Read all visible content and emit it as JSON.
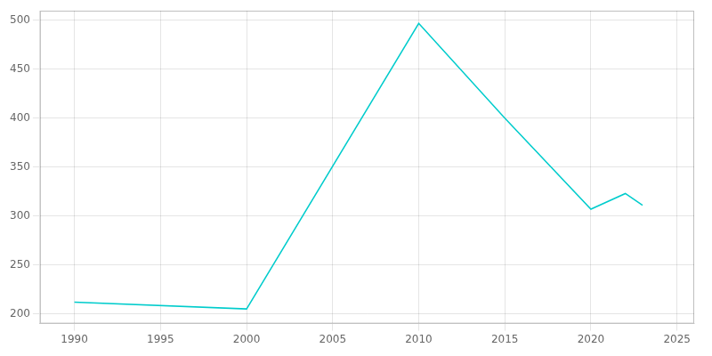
{
  "chart_data": {
    "type": "line",
    "x": [
      1990,
      2000,
      2010,
      2015,
      2020,
      2022,
      2023
    ],
    "values": [
      212,
      205,
      497,
      400,
      307,
      323,
      311
    ],
    "color": "#00CCCC",
    "xlim": [
      1988,
      2026
    ],
    "ylim": [
      190,
      510
    ],
    "xticks": [
      1990,
      1995,
      2000,
      2005,
      2010,
      2015,
      2020,
      2025
    ],
    "yticks": [
      200,
      250,
      300,
      350,
      400,
      450,
      500
    ],
    "grid": true
  }
}
